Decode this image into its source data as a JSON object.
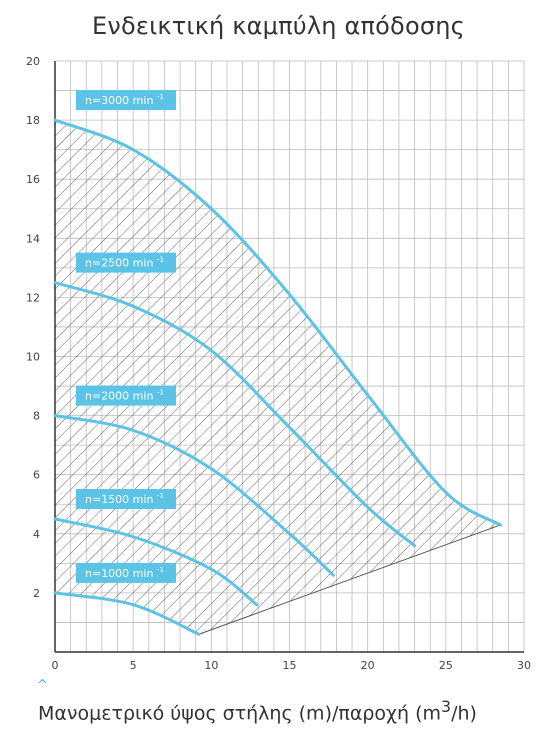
{
  "chart_data": {
    "type": "line",
    "title": "Ενδεικτική καμπύλη απόδοσης",
    "caption": "Μανομετρικό ύψος στήλης (m)/παροχή (m³/h)",
    "caption_parts": {
      "prefix": "Μανομετρικό ύψος στήλης (m)/παροχή (m",
      "sup": "3",
      "suffix": "/h)"
    },
    "caret_glyph": "^",
    "xlabel": "",
    "ylabel": "",
    "xlim": [
      0,
      30
    ],
    "ylim": [
      0,
      20
    ],
    "x_ticks": [
      0,
      5,
      10,
      15,
      20,
      25,
      30
    ],
    "y_ticks": [
      2,
      4,
      6,
      8,
      10,
      12,
      14,
      16,
      18,
      20
    ],
    "grid": true,
    "legend": "left, inline labels",
    "colors": {
      "curve": "#5bc3e6",
      "label_bg": "#5bc3e6",
      "grid": "#bdbdbd",
      "hatch": "#555555",
      "axis": "#333333"
    },
    "operating_limit_line": {
      "x": [
        9.2,
        28.5
      ],
      "y": [
        0.6,
        4.3
      ]
    },
    "series": [
      {
        "name": "n=3000 min",
        "sup": "-1",
        "x": [
          0,
          5,
          10,
          15,
          20,
          25,
          28.5
        ],
        "y": [
          18.0,
          17.0,
          15.0,
          12.1,
          8.7,
          5.4,
          4.3
        ]
      },
      {
        "name": "n=2500 min",
        "sup": "-1",
        "x": [
          0,
          5,
          10,
          15,
          20,
          23.0
        ],
        "y": [
          12.5,
          11.7,
          10.2,
          7.6,
          4.9,
          3.6
        ]
      },
      {
        "name": "n=2000 min",
        "sup": "-1",
        "x": [
          0,
          5,
          10,
          15,
          17.8
        ],
        "y": [
          8.0,
          7.5,
          6.2,
          4.0,
          2.6
        ]
      },
      {
        "name": "n=1500 min",
        "sup": "-1",
        "x": [
          0,
          5,
          10,
          12.9
        ],
        "y": [
          4.5,
          3.9,
          2.8,
          1.6
        ]
      },
      {
        "name": "n=1000 min",
        "sup": "-1",
        "x": [
          0,
          5,
          9.2
        ],
        "y": [
          2.0,
          1.6,
          0.6
        ]
      }
    ]
  }
}
